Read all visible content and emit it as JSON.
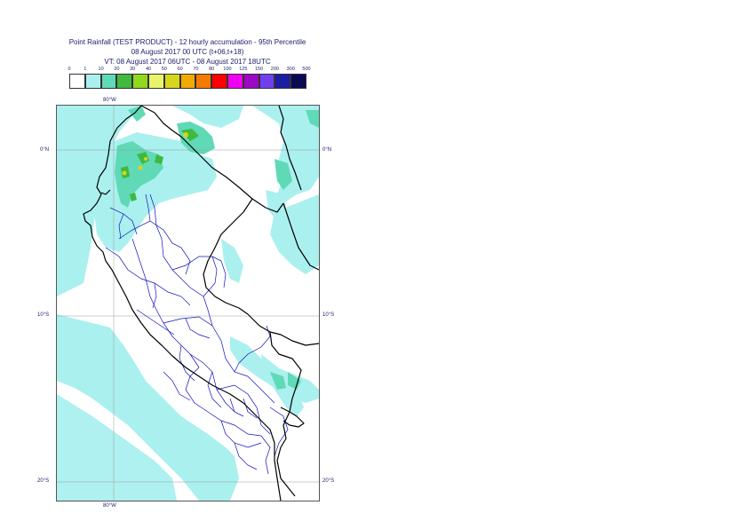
{
  "title": {
    "line1": "Point Rainfall (TEST PRODUCT) - 12 hourly accumulation - 95th Percentile",
    "line2": "08 August 2017 00 UTC (t+06,t+18)",
    "line3": "VT: 08 August 2017 06UTC - 08 August 2017 18UTC"
  },
  "legend": {
    "labels": [
      "0",
      "1",
      "10",
      "20",
      "30",
      "40",
      "50",
      "60",
      "70",
      "80",
      "100",
      "125",
      "150",
      "200",
      "300",
      "500"
    ],
    "colors": [
      "#ffffff",
      "#aaf0ef",
      "#5fd9b6",
      "#3fb93f",
      "#8fd81c",
      "#e8f56a",
      "#d6d61d",
      "#f2a900",
      "#f57b00",
      "#fe0000",
      "#f000f0",
      "#9c08c4",
      "#7040f0",
      "#1c1ca4",
      "#0a0a54"
    ]
  },
  "map": {
    "longitude_labels": {
      "top": "80°W",
      "bottom": "80°W"
    },
    "latitude_labels": [
      {
        "left": "0°N",
        "right": "0°N"
      },
      {
        "left": "10°S",
        "right": "10°S"
      },
      {
        "left": "20°S",
        "right": "20°S"
      }
    ],
    "colors": {
      "rain_light": "#aaf0ef",
      "rain_moderate": "#5fd9b6",
      "rain_heavy": "#3fb93f",
      "rain_peak": "#d6d61d",
      "national_border": "#000000",
      "regional_border": "#1010c0"
    }
  }
}
